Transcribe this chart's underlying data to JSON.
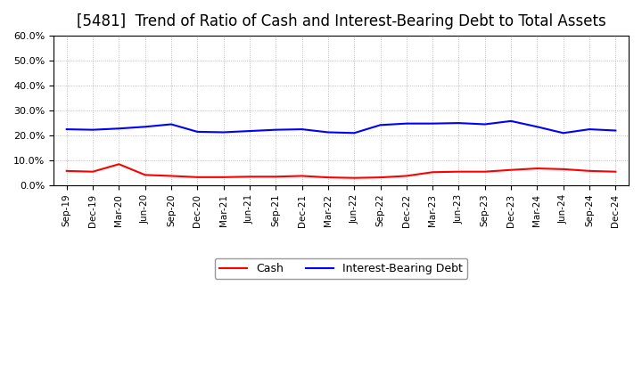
{
  "title": "[5481]  Trend of Ratio of Cash and Interest-Bearing Debt to Total Assets",
  "x_labels": [
    "Sep-19",
    "Dec-19",
    "Mar-20",
    "Jun-20",
    "Sep-20",
    "Dec-20",
    "Mar-21",
    "Jun-21",
    "Sep-21",
    "Dec-21",
    "Mar-22",
    "Jun-22",
    "Sep-22",
    "Dec-22",
    "Mar-23",
    "Jun-23",
    "Sep-23",
    "Dec-23",
    "Mar-24",
    "Jun-24",
    "Sep-24",
    "Dec-24"
  ],
  "cash": [
    5.8,
    5.5,
    8.5,
    4.2,
    3.8,
    3.3,
    3.3,
    3.5,
    3.5,
    3.8,
    3.2,
    3.0,
    3.2,
    3.8,
    5.3,
    5.5,
    5.5,
    6.2,
    6.8,
    6.5,
    5.8,
    5.5
  ],
  "ibd": [
    22.5,
    22.3,
    22.8,
    23.5,
    24.5,
    21.5,
    21.3,
    21.8,
    22.3,
    22.5,
    21.3,
    21.0,
    24.2,
    24.8,
    24.8,
    25.0,
    24.5,
    25.8,
    23.5,
    21.0,
    22.5,
    22.0
  ],
  "cash_color": "#FF0000",
  "ibd_color": "#0000FF",
  "ylim": [
    0,
    60
  ],
  "yticks": [
    0,
    10,
    20,
    30,
    40,
    50,
    60
  ],
  "background_color": "#FFFFFF",
  "grid_color": "#AAAAAA",
  "title_fontsize": 12,
  "legend_cash": "Cash",
  "legend_ibd": "Interest-Bearing Debt"
}
